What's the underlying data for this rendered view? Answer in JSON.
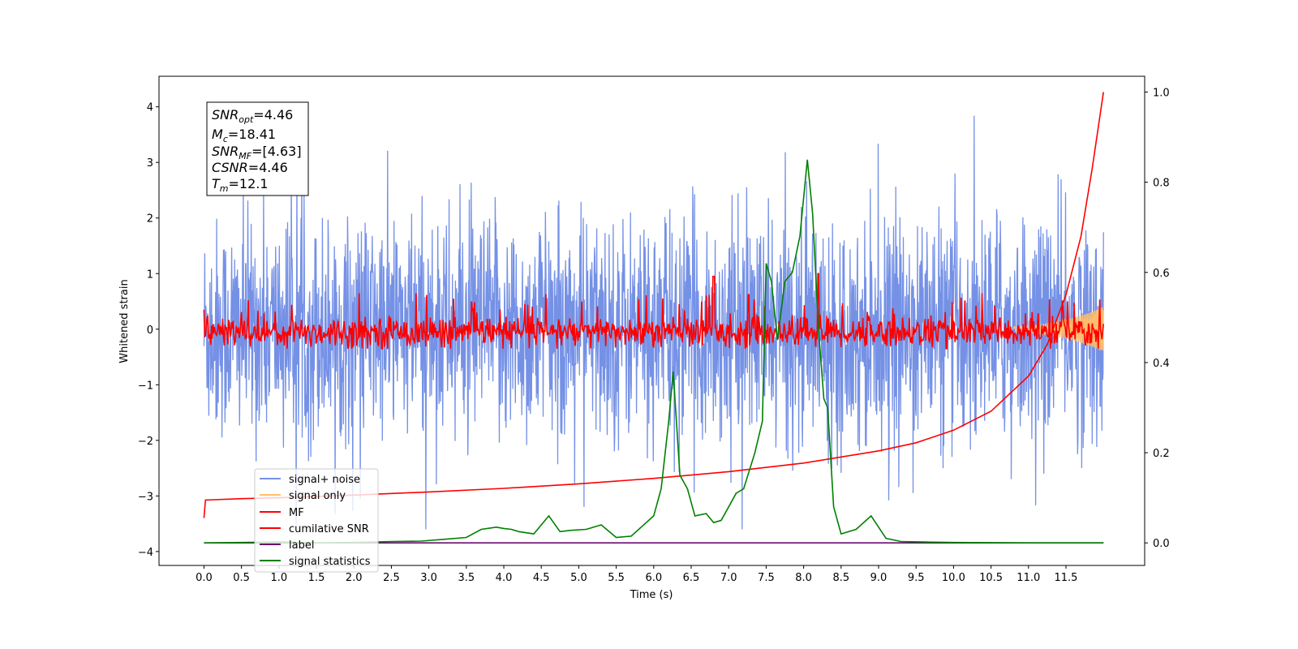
{
  "chart_data": {
    "type": "line",
    "xlabel": "Time (s)",
    "ylabel": "Whitened strain",
    "xlim": [
      -0.6,
      12.55
    ],
    "ylim": [
      -4.25,
      4.55
    ],
    "y2lim": [
      -0.05,
      1.035
    ],
    "x_ticks": [
      "0.0",
      "0.5",
      "1.0",
      "1.5",
      "2.0",
      "2.5",
      "3.0",
      "3.5",
      "4.0",
      "4.5",
      "5.0",
      "5.5",
      "6.0",
      "6.5",
      "7.0",
      "7.5",
      "8.0",
      "8.5",
      "9.0",
      "9.5",
      "10.0",
      "10.5",
      "11.0",
      "11.5"
    ],
    "y_ticks": [
      "−4",
      "−3",
      "−2",
      "−1",
      "0",
      "1",
      "2",
      "3",
      "4"
    ],
    "y2_ticks": [
      "0.0",
      "0.2",
      "0.4",
      "0.6",
      "0.8",
      "1.0"
    ],
    "grid": false,
    "legend_position": "lower-left",
    "info_box": {
      "snr_opt": "=4.46",
      "mc": "=18.41",
      "snr_mf": "=[4.63]",
      "csnr": "=4.46",
      "tm": "=12.1"
    },
    "series": [
      {
        "name": "signal+ noise",
        "axis": "left",
        "color": "#7591e6",
        "approx_range": [
          -3.6,
          4.15
        ]
      },
      {
        "name": "signal only",
        "axis": "left",
        "color": "#ffbe6b",
        "approx_range": [
          -0.4,
          0.4
        ]
      },
      {
        "name": "MF",
        "axis": "left",
        "color": "#ff0000",
        "approx_range": [
          -0.35,
          1.0
        ]
      },
      {
        "name": "cumilative SNR",
        "axis": "right",
        "color": "#ff0000",
        "x": [
          0.0,
          0.02,
          0.5,
          1,
          2,
          3,
          4,
          5,
          6,
          7,
          8,
          9,
          9.5,
          10,
          10.5,
          11,
          11.25,
          11.5,
          11.7,
          11.85,
          12.0
        ],
        "values": [
          0.055,
          0.095,
          0.098,
          0.1,
          0.106,
          0.113,
          0.121,
          0.131,
          0.143,
          0.158,
          0.177,
          0.204,
          0.222,
          0.25,
          0.292,
          0.37,
          0.44,
          0.55,
          0.68,
          0.83,
          1.0
        ]
      },
      {
        "name": "label",
        "axis": "right",
        "color": "#6a0d6f",
        "x": [
          0.0,
          12.0
        ],
        "values": [
          0.0,
          0.0
        ]
      },
      {
        "name": "signal statistics",
        "axis": "right",
        "color": "#008000",
        "x": [
          0.0,
          0.5,
          1.0,
          1.5,
          2.0,
          2.5,
          2.9,
          3.2,
          3.5,
          3.7,
          3.9,
          4.0,
          4.1,
          4.2,
          4.4,
          4.6,
          4.75,
          4.9,
          5.1,
          5.3,
          5.5,
          5.7,
          5.9,
          6.0,
          6.1,
          6.2,
          6.26,
          6.35,
          6.45,
          6.55,
          6.7,
          6.8,
          6.9,
          7.0,
          7.1,
          7.2,
          7.35,
          7.45,
          7.5,
          7.57,
          7.65,
          7.75,
          7.85,
          7.95,
          8.05,
          8.12,
          8.2,
          8.27,
          8.32,
          8.4,
          8.5,
          8.7,
          8.9,
          9.1,
          9.3,
          9.6,
          10.0,
          11.0,
          12.0
        ],
        "values": [
          0.0,
          0.001,
          0.002,
          0.0,
          0.001,
          0.003,
          0.004,
          0.008,
          0.012,
          0.03,
          0.035,
          0.032,
          0.03,
          0.025,
          0.02,
          0.06,
          0.025,
          0.028,
          0.03,
          0.04,
          0.012,
          0.015,
          0.045,
          0.06,
          0.12,
          0.27,
          0.38,
          0.15,
          0.12,
          0.06,
          0.065,
          0.045,
          0.05,
          0.08,
          0.11,
          0.12,
          0.2,
          0.27,
          0.62,
          0.58,
          0.45,
          0.58,
          0.6,
          0.68,
          0.85,
          0.73,
          0.47,
          0.32,
          0.3,
          0.08,
          0.02,
          0.03,
          0.06,
          0.01,
          0.003,
          0.002,
          0.001,
          0.0,
          0.0
        ]
      }
    ]
  }
}
